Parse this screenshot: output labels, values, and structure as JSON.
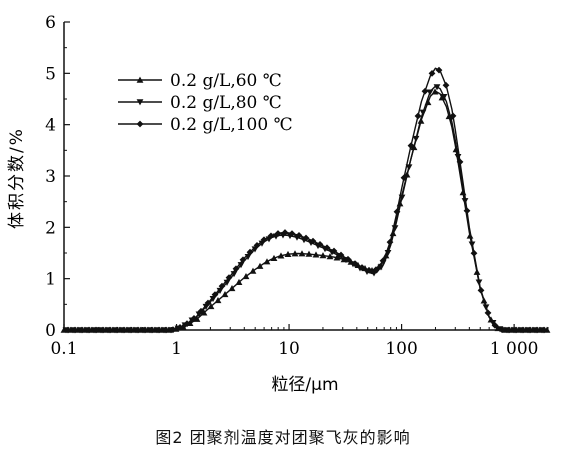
{
  "figure": {
    "caption": "图2   团聚剂温度对团聚飞灰的影响"
  },
  "chart_data": {
    "type": "line",
    "xscale": "log",
    "xlim": [
      0.1,
      2000
    ],
    "ylim": [
      0,
      6
    ],
    "xlabel": "粒径/μm",
    "ylabel": "体积分数/%",
    "xticks": [
      0.1,
      1,
      10,
      100,
      1000
    ],
    "xtick_labels": [
      "0.1",
      "1",
      "10",
      "100",
      "1 000"
    ],
    "yticks": [
      0,
      1,
      2,
      3,
      4,
      5,
      6
    ],
    "ytick_labels": [
      "0",
      "1",
      "2",
      "3",
      "4",
      "5",
      "6"
    ],
    "grid": false,
    "legend_position": "top-left",
    "series": [
      {
        "name": "0.2 g/L,60 ℃",
        "marker": "triangle-up",
        "x": [
          0.1,
          0.5,
          0.9,
          1.0,
          1.2,
          1.5,
          2,
          3,
          4,
          5,
          6,
          7,
          8,
          9,
          10,
          12,
          15,
          20,
          25,
          30,
          35,
          40,
          45,
          50,
          55,
          60,
          70,
          80,
          90,
          100,
          120,
          150,
          180,
          200,
          220,
          250,
          280,
          300,
          350,
          400,
          500,
          600,
          700,
          800,
          1000,
          1500,
          2000
        ],
        "y": [
          0,
          0,
          0,
          0.02,
          0.08,
          0.2,
          0.45,
          0.78,
          1.02,
          1.18,
          1.3,
          1.38,
          1.43,
          1.46,
          1.48,
          1.49,
          1.48,
          1.45,
          1.42,
          1.38,
          1.33,
          1.27,
          1.22,
          1.18,
          1.16,
          1.18,
          1.35,
          1.7,
          2.15,
          2.6,
          3.3,
          4.1,
          4.55,
          4.65,
          4.6,
          4.35,
          3.95,
          3.6,
          2.7,
          1.9,
          0.8,
          0.25,
          0.04,
          0,
          0,
          0,
          0
        ]
      },
      {
        "name": "0.2 g/L,80 ℃",
        "marker": "triangle-down",
        "x": [
          0.1,
          0.5,
          0.9,
          1.0,
          1.2,
          1.5,
          2,
          3,
          4,
          5,
          6,
          7,
          8,
          9,
          10,
          12,
          15,
          20,
          25,
          30,
          35,
          40,
          45,
          50,
          55,
          60,
          70,
          80,
          90,
          100,
          120,
          150,
          180,
          200,
          220,
          250,
          280,
          300,
          350,
          400,
          500,
          600,
          700,
          800,
          1000,
          1500,
          2000
        ],
        "y": [
          0,
          0,
          0,
          0.02,
          0.1,
          0.25,
          0.55,
          1.0,
          1.35,
          1.58,
          1.72,
          1.8,
          1.84,
          1.85,
          1.84,
          1.8,
          1.72,
          1.6,
          1.5,
          1.4,
          1.32,
          1.24,
          1.18,
          1.13,
          1.1,
          1.12,
          1.3,
          1.65,
          2.1,
          2.55,
          3.3,
          4.15,
          4.65,
          4.75,
          4.7,
          4.45,
          4.05,
          3.7,
          2.8,
          1.95,
          0.8,
          0.25,
          0.04,
          0,
          0,
          0,
          0
        ]
      },
      {
        "name": "0.2 g/L,100 ℃",
        "marker": "diamond",
        "x": [
          0.1,
          0.5,
          0.9,
          1.0,
          1.2,
          1.5,
          2,
          3,
          4,
          5,
          6,
          7,
          8,
          9,
          10,
          12,
          15,
          20,
          25,
          30,
          35,
          40,
          45,
          50,
          55,
          60,
          70,
          80,
          90,
          100,
          120,
          150,
          180,
          200,
          220,
          250,
          280,
          300,
          350,
          400,
          500,
          600,
          700,
          800,
          1000,
          1500,
          2000
        ],
        "y": [
          0,
          0,
          0,
          0.02,
          0.1,
          0.26,
          0.58,
          1.05,
          1.4,
          1.62,
          1.76,
          1.84,
          1.88,
          1.9,
          1.89,
          1.85,
          1.77,
          1.64,
          1.54,
          1.44,
          1.35,
          1.27,
          1.21,
          1.17,
          1.15,
          1.18,
          1.38,
          1.75,
          2.25,
          2.75,
          3.55,
          4.45,
          4.95,
          5.1,
          5.05,
          4.75,
          4.3,
          3.9,
          2.9,
          2.0,
          0.82,
          0.26,
          0.04,
          0,
          0,
          0,
          0
        ]
      }
    ]
  }
}
